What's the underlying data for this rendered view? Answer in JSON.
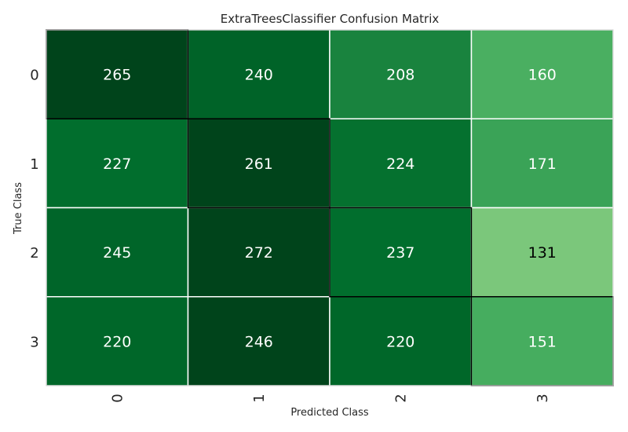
{
  "chart_data": {
    "type": "heatmap",
    "title": "ExtraTreesClassifier Confusion Matrix",
    "xlabel": "Predicted Class",
    "ylabel": "True Class",
    "x_categories": [
      "0",
      "1",
      "2",
      "3"
    ],
    "y_categories": [
      "0",
      "1",
      "2",
      "3"
    ],
    "values": [
      [
        265,
        240,
        208,
        160
      ],
      [
        227,
        261,
        224,
        171
      ],
      [
        245,
        272,
        237,
        131
      ],
      [
        220,
        246,
        220,
        151
      ]
    ],
    "colormap": "Greens",
    "diagonal_outlined": true,
    "grid": true
  }
}
